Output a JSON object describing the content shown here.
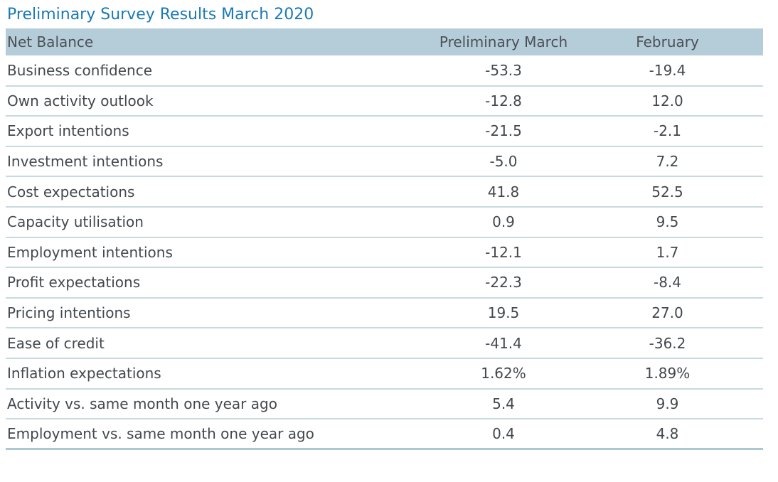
{
  "title": "Preliminary Survey Results March 2020",
  "colors": {
    "title_color": "#1b79b4",
    "header_bg": "#b5ccd9",
    "header_text": "#4b5156",
    "body_text": "#42484d",
    "row_line": "#c7dade",
    "bottom_line": "#adc8d3"
  },
  "chart_data": {
    "type": "table",
    "title": "Preliminary Survey Results March 2020",
    "columns": [
      "Net Balance",
      "Preliminary March",
      "February"
    ],
    "rows": [
      [
        "Business confidence",
        "-53.3",
        "-19.4"
      ],
      [
        "Own activity outlook",
        "-12.8",
        "12.0"
      ],
      [
        "Export intentions",
        "-21.5",
        "-2.1"
      ],
      [
        "Investment intentions",
        "-5.0",
        "7.2"
      ],
      [
        "Cost expectations",
        "41.8",
        "52.5"
      ],
      [
        "Capacity utilisation",
        "0.9",
        "9.5"
      ],
      [
        "Employment intentions",
        "-12.1",
        "1.7"
      ],
      [
        "Profit expectations",
        "-22.3",
        "-8.4"
      ],
      [
        "Pricing intentions",
        "19.5",
        "27.0"
      ],
      [
        "Ease of credit",
        "-41.4",
        "-36.2"
      ],
      [
        "Inflation expectations",
        "1.62%",
        "1.89%"
      ],
      [
        "Activity vs. same month one year ago",
        "5.4",
        "9.9"
      ],
      [
        "Employment vs. same month one year ago",
        "0.4",
        "4.8"
      ]
    ]
  }
}
